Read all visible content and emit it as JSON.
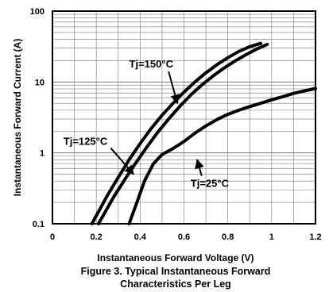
{
  "chart_data": {
    "type": "line",
    "xlabel": "Instantaneous Forward Voltage (V)",
    "ylabel": "Instantaneous Forward Current  (A)",
    "xlim": [
      0,
      1.2
    ],
    "ylim": [
      0.1,
      100
    ],
    "yscale": "log",
    "grid": true,
    "x_ticks": [
      "0",
      "0.2",
      "0.4",
      "0.6",
      "0.8",
      "1",
      "1.2"
    ],
    "y_ticks": [
      "0.1",
      "1",
      "10",
      "100"
    ],
    "caption_lines": [
      "Figure 3. Typical Instantaneous Forward",
      "Characteristics Per  Leg"
    ],
    "series": [
      {
        "name": "Tj=150°C",
        "points": [
          [
            0.18,
            0.1
          ],
          [
            0.25,
            0.25
          ],
          [
            0.3,
            0.45
          ],
          [
            0.35,
            0.8
          ],
          [
            0.4,
            1.35
          ],
          [
            0.45,
            2.2
          ],
          [
            0.5,
            3.4
          ],
          [
            0.55,
            5.0
          ],
          [
            0.6,
            7.2
          ],
          [
            0.65,
            10.0
          ],
          [
            0.7,
            13.5
          ],
          [
            0.75,
            17.5
          ],
          [
            0.8,
            22.0
          ],
          [
            0.85,
            27.0
          ],
          [
            0.9,
            31.5
          ],
          [
            0.95,
            35.0
          ]
        ]
      },
      {
        "name": "Tj=125°C",
        "points": [
          [
            0.21,
            0.1
          ],
          [
            0.28,
            0.24
          ],
          [
            0.33,
            0.42
          ],
          [
            0.38,
            0.72
          ],
          [
            0.43,
            1.2
          ],
          [
            0.48,
            1.95
          ],
          [
            0.53,
            3.0
          ],
          [
            0.58,
            4.5
          ],
          [
            0.63,
            6.5
          ],
          [
            0.68,
            9.0
          ],
          [
            0.73,
            12.0
          ],
          [
            0.78,
            15.5
          ],
          [
            0.83,
            19.5
          ],
          [
            0.88,
            24.0
          ],
          [
            0.93,
            29.0
          ],
          [
            0.98,
            34.0
          ]
        ]
      },
      {
        "name": "Tj=25°C",
        "points": [
          [
            0.35,
            0.1
          ],
          [
            0.38,
            0.18
          ],
          [
            0.42,
            0.4
          ],
          [
            0.46,
            0.7
          ],
          [
            0.5,
            0.95
          ],
          [
            0.55,
            1.15
          ],
          [
            0.6,
            1.45
          ],
          [
            0.65,
            1.9
          ],
          [
            0.7,
            2.4
          ],
          [
            0.75,
            2.95
          ],
          [
            0.8,
            3.5
          ],
          [
            0.85,
            4.0
          ],
          [
            0.9,
            4.5
          ],
          [
            0.95,
            5.0
          ],
          [
            1.0,
            5.6
          ],
          [
            1.05,
            6.2
          ],
          [
            1.1,
            6.9
          ],
          [
            1.15,
            7.5
          ],
          [
            1.2,
            8.1
          ]
        ]
      }
    ],
    "annotations": [
      {
        "text": "Tj=150°C",
        "x": 0.35,
        "y": 16,
        "arrow_to": [
          0.57,
          5.0
        ]
      },
      {
        "text": "Tj=125°C",
        "x": 0.05,
        "y": 1.3,
        "arrow_to": [
          0.37,
          0.5
        ]
      },
      {
        "text": "Tj=25°C",
        "x": 0.63,
        "y": 0.33,
        "arrow_to": [
          0.66,
          0.8
        ]
      }
    ]
  }
}
